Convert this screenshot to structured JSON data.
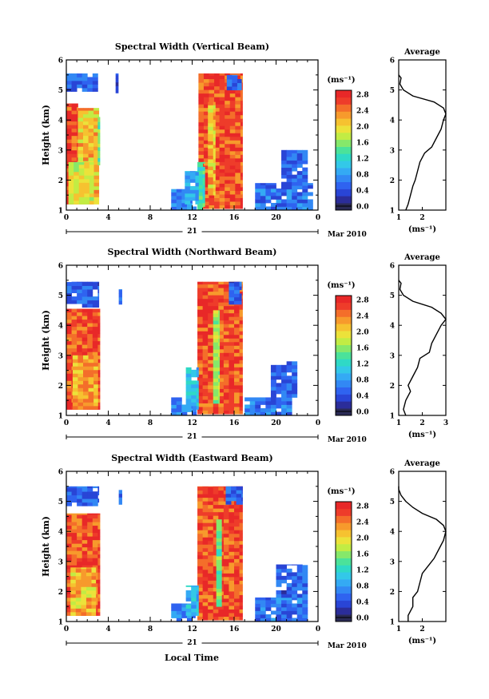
{
  "figure": {
    "xaxis_label": "Local Time",
    "day_label": "21",
    "month_label": "Mar 2010",
    "cbar_unit": "(ms⁻¹)",
    "avg_title": "Average",
    "avg_unit": "(ms⁻¹)",
    "colors": [
      "#2a2a55",
      "#2b2d9a",
      "#2945d6",
      "#2f63f0",
      "#3288f4",
      "#34aaf4",
      "#33c8e8",
      "#2fd9c6",
      "#4be29a",
      "#86e86a",
      "#c2ec44",
      "#ece23a",
      "#f6c230",
      "#f79a2c",
      "#f46e2a",
      "#ee3c2a",
      "#e82828"
    ]
  },
  "chart_data": [
    {
      "type": "heatmap",
      "title": "Spectral Width (Vertical Beam)",
      "xlabel": "Local Time",
      "ylabel": "Height (km)",
      "x_ticks": [
        "0",
        "4",
        "8",
        "12",
        "16",
        "20",
        "0"
      ],
      "y_ticks": [
        "1",
        "2",
        "3",
        "4",
        "5",
        "6"
      ],
      "xlim": [
        0,
        24
      ],
      "ylim": [
        1,
        6
      ],
      "cbar_ticks": [
        "0.0",
        "0.4",
        "0.8",
        "1.2",
        "1.6",
        "2.0",
        "2.4",
        "2.8"
      ],
      "cbar_range": [
        0,
        3.0
      ],
      "average": {
        "xticks": [
          "1",
          "2"
        ],
        "xlim": [
          1,
          3.0
        ],
        "ylim": [
          1,
          6
        ],
        "profile": [
          [
            1.0,
            1.3
          ],
          [
            1.2,
            1.4
          ],
          [
            1.5,
            1.5
          ],
          [
            1.8,
            1.6
          ],
          [
            2.0,
            1.7
          ],
          [
            2.3,
            1.8
          ],
          [
            2.6,
            1.9
          ],
          [
            2.9,
            2.1
          ],
          [
            3.1,
            2.4
          ],
          [
            3.4,
            2.6
          ],
          [
            3.7,
            2.8
          ],
          [
            4.0,
            2.9
          ],
          [
            4.2,
            3.0
          ],
          [
            4.4,
            2.9
          ],
          [
            4.6,
            2.5
          ],
          [
            4.8,
            1.6
          ],
          [
            5.0,
            1.2
          ],
          [
            5.2,
            1.05
          ],
          [
            5.4,
            1.1
          ],
          [
            5.5,
            1.0
          ]
        ]
      },
      "regions": [
        {
          "x": [
            0.0,
            3.0
          ],
          "y": [
            4.95,
            5.55
          ],
          "v": 0.6
        },
        {
          "x": [
            4.7,
            4.95
          ],
          "y": [
            4.9,
            5.55
          ],
          "v": 0.6
        },
        {
          "x": [
            0.0,
            1.1
          ],
          "y": [
            1.2,
            4.55
          ],
          "v": 2.7
        },
        {
          "x": [
            1.1,
            3.1
          ],
          "y": [
            1.2,
            4.4
          ],
          "v": 2.2
        },
        {
          "x": [
            0.2,
            2.6
          ],
          "y": [
            1.2,
            2.6
          ],
          "v": 2.0
        },
        {
          "x": [
            3.0,
            3.2
          ],
          "y": [
            2.5,
            4.1
          ],
          "v": 1.6
        },
        {
          "x": [
            12.6,
            16.8
          ],
          "y": [
            1.05,
            5.55
          ],
          "v": 2.7
        },
        {
          "x": [
            13.5,
            14.2
          ],
          "y": [
            1.5,
            4.6
          ],
          "v": 2.2
        },
        {
          "x": [
            12.5,
            13.2
          ],
          "y": [
            1.0,
            2.6
          ],
          "v": 1.4
        },
        {
          "x": [
            15.3,
            16.7
          ],
          "y": [
            5.0,
            5.5
          ],
          "v": 0.6
        },
        {
          "x": [
            10.0,
            12.4
          ],
          "y": [
            1.0,
            1.7
          ],
          "v": 0.8
        },
        {
          "x": [
            11.3,
            12.6
          ],
          "y": [
            1.2,
            2.3
          ],
          "v": 1.0
        },
        {
          "x": [
            18.0,
            23.5
          ],
          "y": [
            1.0,
            1.9
          ],
          "v": 0.7
        },
        {
          "x": [
            20.5,
            23.0
          ],
          "y": [
            1.7,
            3.0
          ],
          "v": 0.6
        }
      ]
    },
    {
      "type": "heatmap",
      "title": "Spectral Width (Northward Beam)",
      "xlabel": "Local Time",
      "ylabel": "Height (km)",
      "x_ticks": [
        "0",
        "4",
        "8",
        "12",
        "16",
        "20",
        "0"
      ],
      "y_ticks": [
        "1",
        "2",
        "3",
        "4",
        "5",
        "6"
      ],
      "xlim": [
        0,
        24
      ],
      "ylim": [
        1,
        6
      ],
      "cbar_ticks": [
        "0.0",
        "0.4",
        "0.8",
        "1.2",
        "1.6",
        "2.0",
        "2.4",
        "2.8"
      ],
      "cbar_range": [
        0,
        3.0
      ],
      "average": {
        "xticks": [
          "1",
          "2",
          "3"
        ],
        "xlim": [
          1,
          3.0
        ],
        "ylim": [
          1,
          6
        ],
        "profile": [
          [
            1.0,
            1.3
          ],
          [
            1.2,
            1.2
          ],
          [
            1.5,
            1.3
          ],
          [
            1.8,
            1.5
          ],
          [
            2.0,
            1.4
          ],
          [
            2.3,
            1.6
          ],
          [
            2.6,
            1.8
          ],
          [
            2.9,
            1.9
          ],
          [
            3.1,
            2.3
          ],
          [
            3.4,
            2.4
          ],
          [
            3.7,
            2.6
          ],
          [
            4.0,
            2.8
          ],
          [
            4.2,
            3.0
          ],
          [
            4.4,
            2.8
          ],
          [
            4.6,
            2.4
          ],
          [
            4.8,
            1.6
          ],
          [
            5.0,
            1.2
          ],
          [
            5.2,
            1.05
          ],
          [
            5.4,
            1.1
          ],
          [
            5.5,
            1.0
          ]
        ]
      },
      "regions": [
        {
          "x": [
            0.0,
            3.1
          ],
          "y": [
            4.6,
            5.45
          ],
          "v": 0.6
        },
        {
          "x": [
            5.0,
            5.3
          ],
          "y": [
            4.7,
            5.2
          ],
          "v": 0.6
        },
        {
          "x": [
            0.0,
            3.2
          ],
          "y": [
            1.2,
            4.55
          ],
          "v": 2.7
        },
        {
          "x": [
            0.6,
            3.0
          ],
          "y": [
            1.2,
            3.0
          ],
          "v": 2.3
        },
        {
          "x": [
            12.5,
            16.8
          ],
          "y": [
            1.05,
            5.45
          ],
          "v": 2.7
        },
        {
          "x": [
            14.0,
            14.6
          ],
          "y": [
            1.4,
            4.5
          ],
          "v": 1.8
        },
        {
          "x": [
            15.5,
            16.7
          ],
          "y": [
            4.7,
            5.45
          ],
          "v": 0.6
        },
        {
          "x": [
            10.0,
            12.4
          ],
          "y": [
            1.0,
            1.6
          ],
          "v": 0.8
        },
        {
          "x": [
            11.4,
            12.6
          ],
          "y": [
            1.2,
            2.6
          ],
          "v": 1.1
        },
        {
          "x": [
            17.0,
            21.5
          ],
          "y": [
            1.0,
            1.6
          ],
          "v": 0.7
        },
        {
          "x": [
            19.5,
            22.0
          ],
          "y": [
            1.6,
            2.8
          ],
          "v": 0.6
        }
      ]
    },
    {
      "type": "heatmap",
      "title": "Spectral Width (Eastward Beam)",
      "xlabel": "Local Time",
      "ylabel": "Height (km)",
      "x_ticks": [
        "0",
        "4",
        "8",
        "12",
        "16",
        "20",
        "0"
      ],
      "y_ticks": [
        "1",
        "2",
        "3",
        "4",
        "5",
        "6"
      ],
      "xlim": [
        0,
        24
      ],
      "ylim": [
        1,
        6
      ],
      "cbar_ticks": [
        "0.0",
        "0.4",
        "0.8",
        "1.2",
        "1.6",
        "2.0",
        "2.4",
        "2.8"
      ],
      "cbar_range": [
        0,
        3.0
      ],
      "average": {
        "xticks": [
          "1",
          "2"
        ],
        "xlim": [
          1,
          3.0
        ],
        "ylim": [
          1,
          6
        ],
        "profile": [
          [
            1.0,
            1.4
          ],
          [
            1.2,
            1.4
          ],
          [
            1.5,
            1.6
          ],
          [
            1.8,
            1.6
          ],
          [
            2.0,
            1.8
          ],
          [
            2.3,
            1.9
          ],
          [
            2.6,
            2.0
          ],
          [
            2.9,
            2.3
          ],
          [
            3.1,
            2.5
          ],
          [
            3.4,
            2.7
          ],
          [
            3.7,
            2.9
          ],
          [
            4.0,
            3.0
          ],
          [
            4.2,
            2.9
          ],
          [
            4.4,
            2.6
          ],
          [
            4.6,
            2.0
          ],
          [
            4.8,
            1.6
          ],
          [
            5.0,
            1.3
          ],
          [
            5.2,
            1.1
          ],
          [
            5.4,
            1.0
          ],
          [
            5.5,
            1.0
          ]
        ]
      },
      "regions": [
        {
          "x": [
            0.0,
            3.1
          ],
          "y": [
            4.85,
            5.5
          ],
          "v": 0.6
        },
        {
          "x": [
            5.0,
            5.3
          ],
          "y": [
            4.9,
            5.5
          ],
          "v": 0.6
        },
        {
          "x": [
            0.0,
            3.2
          ],
          "y": [
            1.2,
            4.6
          ],
          "v": 2.7
        },
        {
          "x": [
            0.4,
            2.8
          ],
          "y": [
            1.2,
            2.8
          ],
          "v": 2.2
        },
        {
          "x": [
            12.5,
            16.8
          ],
          "y": [
            1.05,
            5.5
          ],
          "v": 2.7
        },
        {
          "x": [
            14.3,
            14.8
          ],
          "y": [
            1.5,
            4.4
          ],
          "v": 1.6
        },
        {
          "x": [
            15.2,
            16.8
          ],
          "y": [
            4.9,
            5.5
          ],
          "v": 0.6
        },
        {
          "x": [
            10.0,
            12.3
          ],
          "y": [
            1.0,
            1.6
          ],
          "v": 0.8
        },
        {
          "x": [
            11.4,
            12.6
          ],
          "y": [
            1.2,
            2.2
          ],
          "v": 1.1
        },
        {
          "x": [
            18.0,
            23.0
          ],
          "y": [
            1.0,
            1.8
          ],
          "v": 0.7
        },
        {
          "x": [
            20.0,
            23.0
          ],
          "y": [
            1.8,
            2.9
          ],
          "v": 0.6
        }
      ]
    }
  ]
}
